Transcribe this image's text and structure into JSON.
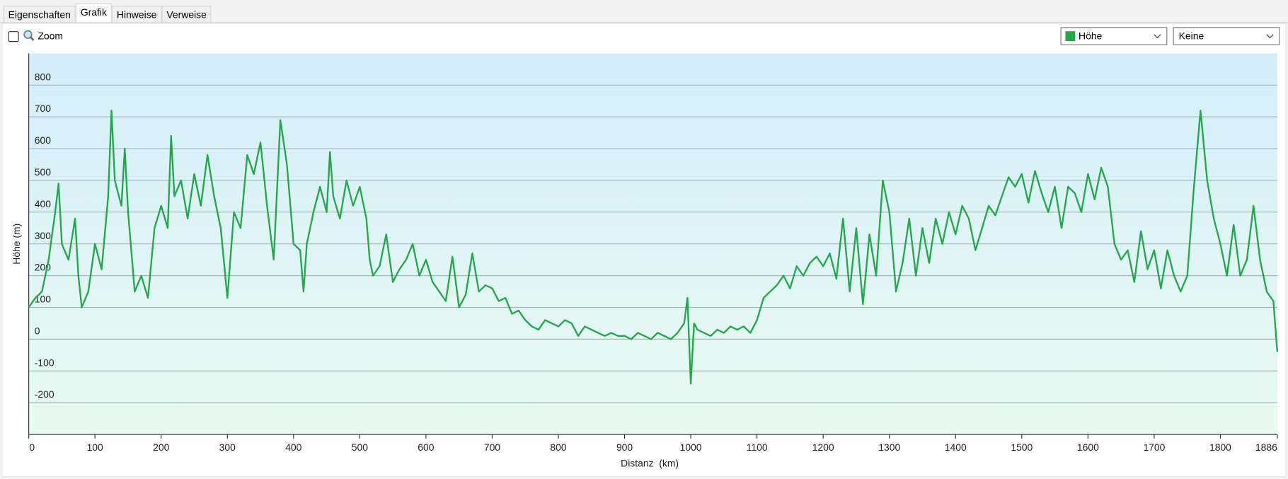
{
  "tabs": [
    "Eigenschaften",
    "Grafik",
    "Hinweise",
    "Verweise"
  ],
  "toolbar": {
    "zoom": "Zoom",
    "series_select": "Höhe",
    "second_select": "Keine"
  },
  "chart_data": {
    "type": "line",
    "ylabel": "Höhe (m)",
    "xlabel": "Distanz  (km)",
    "color": "#22a84a",
    "grid": true,
    "xlim": [
      0,
      1886
    ],
    "ylim": [
      -300,
      900
    ],
    "xticks": [
      0,
      100,
      200,
      300,
      400,
      500,
      600,
      700,
      800,
      900,
      1000,
      1100,
      1200,
      1300,
      1400,
      1500,
      1600,
      1700,
      1800,
      1886
    ],
    "yticks": [
      -200,
      -100,
      0,
      100,
      200,
      300,
      400,
      500,
      600,
      700,
      800
    ],
    "x": [
      0,
      10,
      20,
      30,
      40,
      45,
      50,
      60,
      70,
      75,
      80,
      90,
      100,
      110,
      120,
      125,
      130,
      140,
      145,
      150,
      160,
      170,
      180,
      190,
      200,
      210,
      215,
      220,
      230,
      240,
      250,
      260,
      270,
      280,
      290,
      300,
      310,
      320,
      330,
      340,
      350,
      360,
      370,
      380,
      390,
      400,
      410,
      415,
      420,
      430,
      440,
      450,
      455,
      460,
      470,
      480,
      490,
      500,
      510,
      515,
      520,
      530,
      540,
      550,
      560,
      570,
      580,
      590,
      600,
      610,
      620,
      630,
      640,
      650,
      660,
      670,
      680,
      690,
      700,
      710,
      720,
      730,
      740,
      750,
      760,
      770,
      780,
      790,
      800,
      810,
      820,
      830,
      840,
      850,
      860,
      870,
      880,
      890,
      900,
      910,
      920,
      930,
      940,
      950,
      960,
      970,
      980,
      990,
      995,
      1000,
      1005,
      1010,
      1020,
      1030,
      1040,
      1050,
      1060,
      1070,
      1080,
      1090,
      1100,
      1110,
      1120,
      1130,
      1140,
      1150,
      1160,
      1170,
      1180,
      1190,
      1200,
      1210,
      1220,
      1230,
      1240,
      1250,
      1260,
      1270,
      1280,
      1290,
      1300,
      1310,
      1320,
      1330,
      1340,
      1350,
      1360,
      1370,
      1380,
      1390,
      1400,
      1410,
      1420,
      1430,
      1440,
      1450,
      1460,
      1470,
      1480,
      1490,
      1500,
      1510,
      1520,
      1530,
      1540,
      1550,
      1560,
      1570,
      1580,
      1590,
      1600,
      1610,
      1620,
      1630,
      1640,
      1650,
      1660,
      1670,
      1680,
      1690,
      1700,
      1710,
      1720,
      1730,
      1740,
      1750,
      1760,
      1770,
      1780,
      1790,
      1800,
      1810,
      1820,
      1830,
      1840,
      1850,
      1860,
      1870,
      1880,
      1886
    ],
    "values": [
      100,
      130,
      150,
      250,
      400,
      490,
      300,
      250,
      380,
      200,
      100,
      150,
      300,
      220,
      450,
      720,
      500,
      420,
      600,
      400,
      150,
      200,
      130,
      350,
      420,
      350,
      640,
      450,
      500,
      380,
      520,
      420,
      580,
      450,
      350,
      130,
      400,
      350,
      580,
      520,
      620,
      420,
      250,
      690,
      550,
      300,
      280,
      150,
      300,
      400,
      480,
      400,
      590,
      450,
      380,
      500,
      420,
      480,
      380,
      250,
      200,
      230,
      330,
      180,
      220,
      250,
      300,
      200,
      250,
      180,
      150,
      120,
      260,
      100,
      140,
      270,
      150,
      170,
      160,
      120,
      130,
      80,
      90,
      60,
      40,
      30,
      60,
      50,
      40,
      60,
      50,
      10,
      40,
      30,
      20,
      10,
      20,
      10,
      10,
      0,
      20,
      10,
      0,
      20,
      10,
      0,
      20,
      50,
      130,
      -140,
      50,
      30,
      20,
      10,
      30,
      20,
      40,
      30,
      40,
      20,
      60,
      130,
      150,
      170,
      200,
      160,
      230,
      200,
      240,
      260,
      230,
      270,
      190,
      380,
      150,
      350,
      110,
      330,
      200,
      500,
      400,
      150,
      240,
      380,
      200,
      350,
      240,
      380,
      300,
      400,
      330,
      420,
      380,
      280,
      350,
      420,
      390,
      450,
      510,
      480,
      520,
      430,
      530,
      460,
      400,
      480,
      350,
      480,
      460,
      400,
      520,
      440,
      540,
      480,
      300,
      250,
      280,
      180,
      340,
      220,
      280,
      160,
      280,
      200,
      150,
      200,
      480,
      720,
      500,
      380,
      300,
      200,
      360,
      200,
      250,
      420,
      250,
      150,
      120,
      -40
    ]
  }
}
